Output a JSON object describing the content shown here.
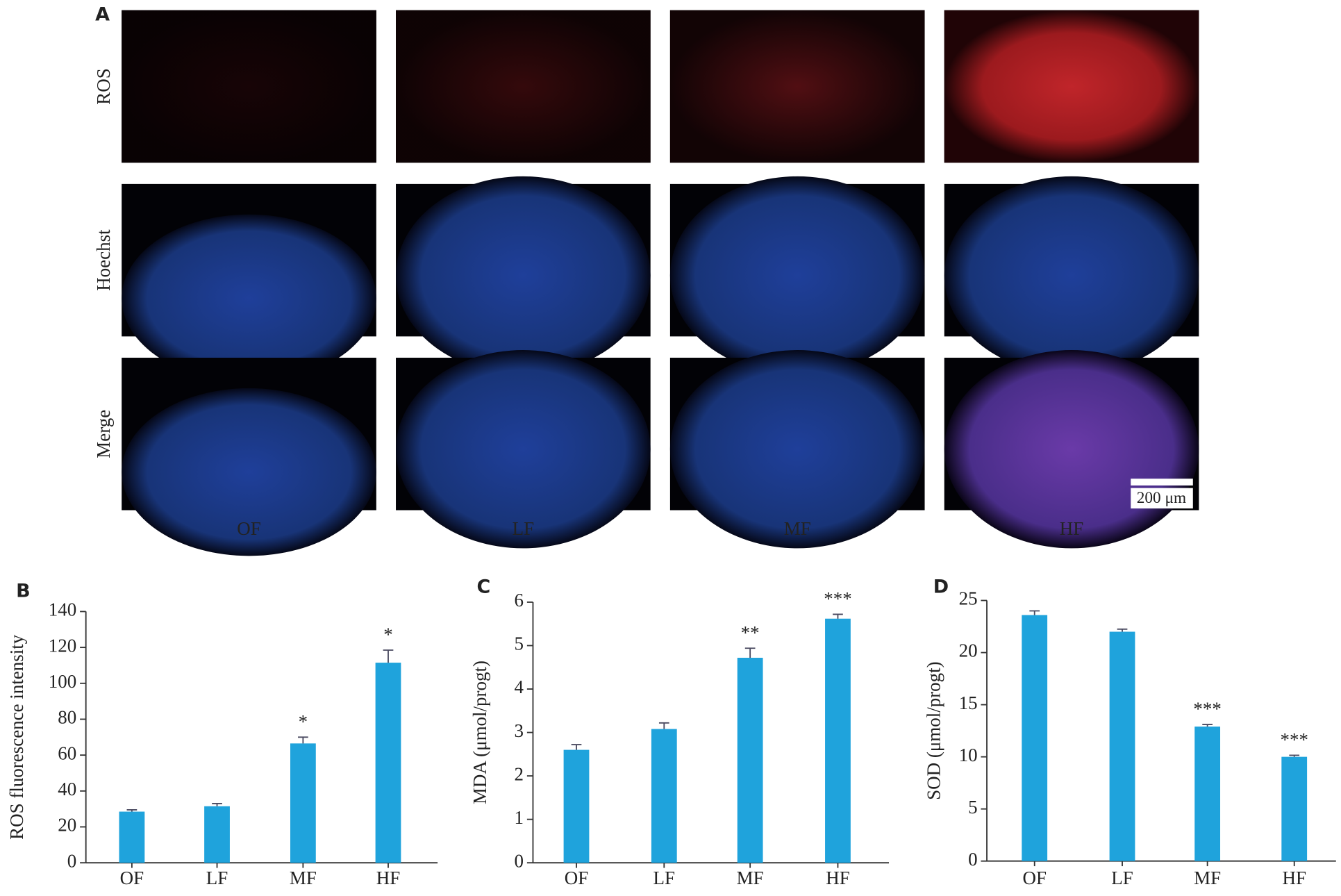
{
  "panel_a": {
    "label": "A",
    "rows": [
      "ROS",
      "Hoechst",
      "Merge"
    ],
    "columns": [
      "OF",
      "LF",
      "MF",
      "HF"
    ],
    "scale_bar": "200 μm"
  },
  "chart_data": [
    {
      "type": "bar",
      "panel": "B",
      "y_label": "ROS fluorescence intensity",
      "categories": [
        "OF",
        "LF",
        "MF",
        "HF"
      ],
      "values": [
        28.5,
        31.5,
        66.5,
        111.5
      ],
      "errors": [
        1,
        1.5,
        3.5,
        7
      ],
      "annotations": [
        null,
        null,
        "*",
        "*"
      ],
      "color": "#1fa3dc",
      "ylim": [
        0,
        140
      ],
      "yticks": [
        0,
        20,
        40,
        60,
        80,
        100,
        120,
        140
      ]
    },
    {
      "type": "bar",
      "panel": "C",
      "y_label": "MDA (μmol/progt)",
      "categories": [
        "OF",
        "LF",
        "MF",
        "HF"
      ],
      "values": [
        2.6,
        3.08,
        4.72,
        5.62
      ],
      "errors": [
        0.12,
        0.14,
        0.22,
        0.1
      ],
      "annotations": [
        null,
        null,
        "**",
        "***"
      ],
      "color": "#1fa3dc",
      "ylim": [
        0,
        6
      ],
      "yticks": [
        0,
        1,
        2,
        3,
        4,
        5,
        6
      ]
    },
    {
      "type": "bar",
      "panel": "D",
      "y_label": "SOD (μmol/progt)",
      "categories": [
        "OF",
        "LF",
        "MF",
        "HF"
      ],
      "values": [
        23.6,
        22.0,
        12.9,
        10.0
      ],
      "errors": [
        0.4,
        0.25,
        0.2,
        0.15
      ],
      "annotations": [
        null,
        null,
        "***",
        "***"
      ],
      "color": "#1fa3dc",
      "ylim": [
        0,
        25
      ],
      "yticks": [
        0,
        5,
        10,
        15,
        20,
        25
      ]
    }
  ]
}
